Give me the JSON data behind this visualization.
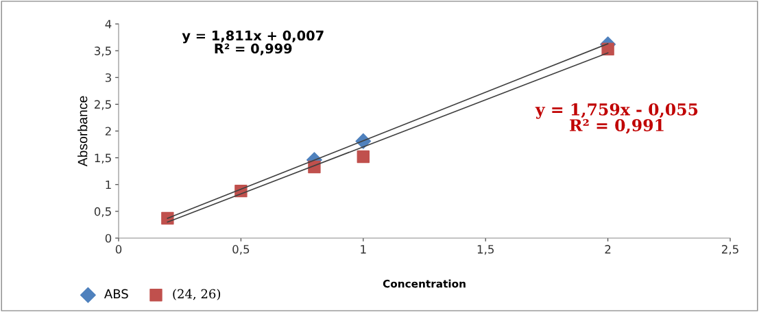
{
  "chart_data": {
    "type": "scatter",
    "xlabel": "Concentration",
    "ylabel": "Absorbance",
    "xlim": [
      0,
      2.5
    ],
    "xticks": [
      0,
      {
        "value": 0.5,
        "label": "0,5"
      },
      1,
      {
        "value": 1.5,
        "label": "1,5"
      },
      2,
      {
        "value": 2.5,
        "label": "2,5"
      }
    ],
    "ylim": [
      0,
      4
    ],
    "yticks": [
      0,
      {
        "value": 0.5,
        "label": "0,5"
      },
      1,
      {
        "value": 1.5,
        "label": "1,5"
      },
      2,
      {
        "value": 2.5,
        "label": "2,5"
      },
      3,
      {
        "value": 3.5,
        "label": "3,5"
      },
      4
    ],
    "grid": false,
    "legend": "bottom left",
    "series": [
      {
        "type": "line",
        "color": "#404040",
        "marker": "none",
        "line_style": "solid",
        "x": [
          0.2,
          2
        ],
        "values": [
          0.37,
          3.63
        ]
      },
      {
        "type": "line",
        "color": "#404040",
        "marker": "none",
        "line_style": "solid",
        "x": [
          0.2,
          2
        ],
        "values": [
          0.3,
          3.46
        ]
      },
      {
        "name": "ABS",
        "color": "#4f81bd",
        "marker": "diamond",
        "x": [
          0.8,
          1,
          2
        ],
        "values": [
          1.46,
          1.81,
          3.62
        ]
      },
      {
        "name": "(24, 26)",
        "color": "#c0504d",
        "marker": "square",
        "x": [
          0.2,
          0.5,
          0.8,
          1,
          2
        ],
        "values": [
          0.37,
          0.88,
          1.33,
          1.52,
          3.53
        ]
      }
    ],
    "annotations": [
      "y = 1,811x + 0,007\nR² = 0,999",
      "y = 1,759x - 0,055\nR² = 0,991"
    ]
  }
}
